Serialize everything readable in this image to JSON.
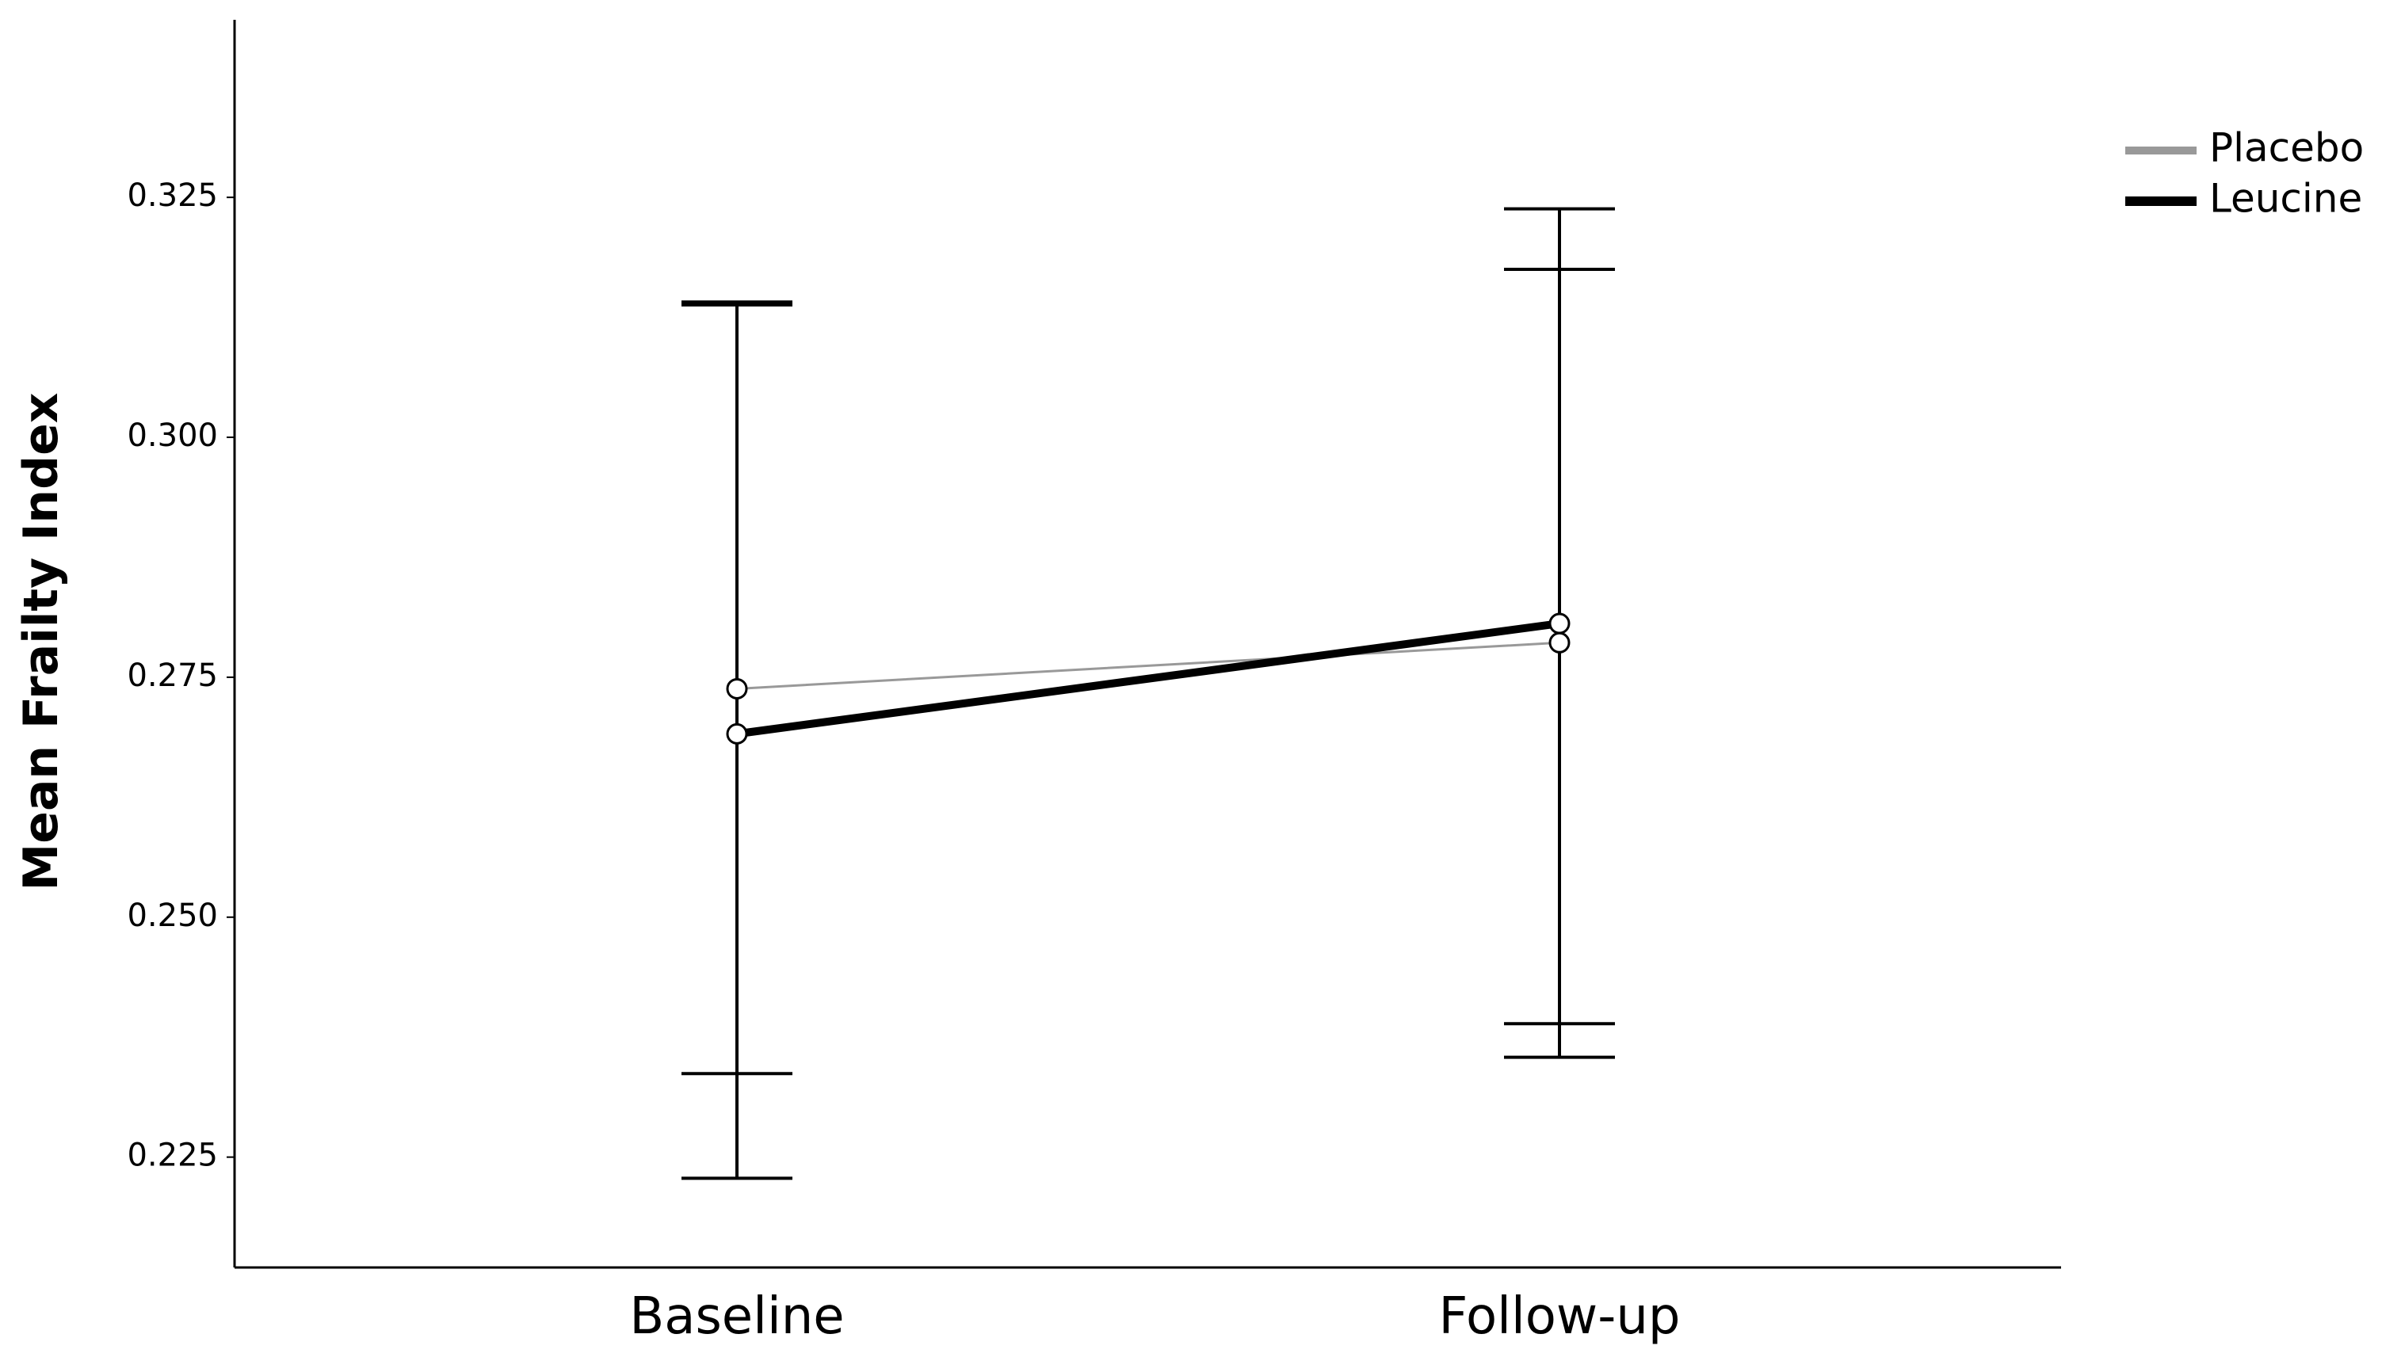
{
  "chart_data": {
    "type": "line",
    "ylabel": "Mean Frailty Index",
    "xlabel": "",
    "categories": [
      "Baseline",
      "Follow-up"
    ],
    "ylim": [
      0.2135,
      0.3435
    ],
    "yticks": [
      0.225,
      0.25,
      0.275,
      0.3,
      0.325
    ],
    "ytick_labels": [
      "0.225",
      "0.250",
      "0.275",
      "0.300",
      "0.325"
    ],
    "grid": false,
    "legend_position": "top-right",
    "series": [
      {
        "name": "Placebo",
        "color": "#999999",
        "values": [
          0.2738,
          0.2786
        ],
        "error_low": [
          0.2337,
          0.2389
        ],
        "error_high": [
          0.3141,
          0.3175
        ]
      },
      {
        "name": "Leucine",
        "color": "#000000",
        "values": [
          0.2691,
          0.2806
        ],
        "error_low": [
          0.2228,
          0.2354
        ],
        "error_high": [
          0.3138,
          0.3238
        ]
      }
    ]
  }
}
